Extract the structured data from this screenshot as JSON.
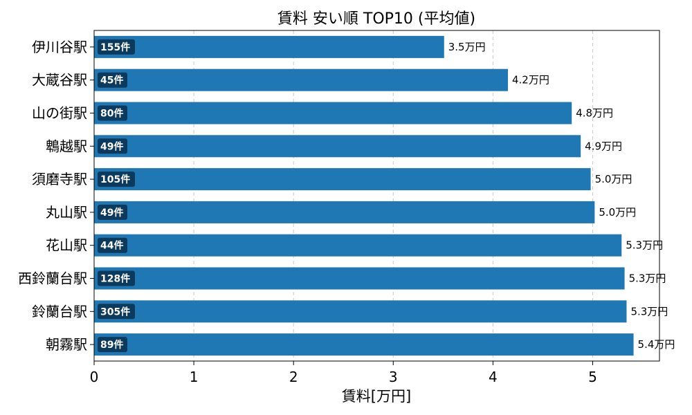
{
  "chart_data": {
    "type": "bar",
    "orientation": "horizontal",
    "title": "賃料 安い順 TOP10 (平均値)",
    "xlabel": "賃料[万円]",
    "ylabel": "",
    "xlim": [
      0,
      5.67
    ],
    "xticks": [
      0,
      1,
      2,
      3,
      4,
      5
    ],
    "grid": "x",
    "bar_color": "#1f77b4",
    "badge_color": "#0b3a5c",
    "categories": [
      "伊川谷駅",
      "大蔵谷駅",
      "山の街駅",
      "鵯越駅",
      "須磨寺駅",
      "丸山駅",
      "花山駅",
      "西鈴蘭台駅",
      "鈴蘭台駅",
      "朝霧駅"
    ],
    "values": [
      3.51,
      4.15,
      4.79,
      4.88,
      4.98,
      5.02,
      5.29,
      5.32,
      5.34,
      5.41
    ],
    "value_labels": [
      "3.5万円",
      "4.2万円",
      "4.8万円",
      "4.9万円",
      "5.0万円",
      "5.0万円",
      "5.3万円",
      "5.3万円",
      "5.3万円",
      "5.4万円"
    ],
    "count_labels": [
      "155件",
      "45件",
      "80件",
      "49件",
      "105件",
      "49件",
      "44件",
      "128件",
      "305件",
      "89件"
    ]
  }
}
